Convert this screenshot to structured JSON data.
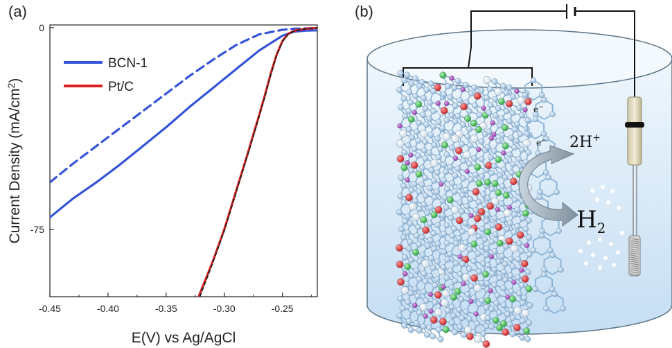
{
  "panels": {
    "a": {
      "label": "(a)"
    },
    "b": {
      "label": "(b)"
    }
  },
  "chart_data": {
    "type": "line",
    "title": "",
    "xlabel": "E(V) vs Ag/AgCl",
    "ylabel": "Current Density (mA/cm²)",
    "ylabel_parts": {
      "main": "Current Density (mA/cm",
      "sup": "2",
      "end": ")"
    },
    "xlim": [
      -0.45,
      -0.22
    ],
    "ylim": [
      -100,
      1
    ],
    "x_ticks": [
      -0.45,
      -0.4,
      -0.35,
      -0.3,
      -0.25
    ],
    "x_tick_labels": [
      "-0.45",
      "-0.40",
      "-0.35",
      "-0.30",
      "-0.25"
    ],
    "y_ticks": [
      0,
      -75
    ],
    "y_tick_labels": [
      "0",
      "-75"
    ],
    "legend_position": "top-left",
    "series": [
      {
        "name": "BCN-1",
        "color": "#3554d8",
        "style": "solid",
        "x": [
          -0.45,
          -0.43,
          -0.41,
          -0.39,
          -0.37,
          -0.35,
          -0.33,
          -0.31,
          -0.29,
          -0.27,
          -0.25,
          -0.24,
          -0.23,
          -0.22
        ],
        "y": [
          -70.5,
          -63.5,
          -57.5,
          -51,
          -44,
          -37,
          -29.5,
          -22.5,
          -15.5,
          -8.5,
          -3,
          -1.5,
          -1.1,
          -1
        ]
      },
      {
        "name": "",
        "color": "#3554d8",
        "style": "dashed",
        "x": [
          -0.45,
          -0.43,
          -0.41,
          -0.39,
          -0.37,
          -0.35,
          -0.33,
          -0.31,
          -0.29,
          -0.27,
          -0.25,
          -0.24,
          -0.23,
          -0.22
        ],
        "y": [
          -57.5,
          -50.5,
          -44,
          -37.5,
          -31,
          -24.5,
          -18,
          -12,
          -6.5,
          -2.5,
          -0.8,
          -0.4,
          -0.3,
          -0.2
        ]
      },
      {
        "name": "Pt/C",
        "color": "#e02121",
        "style": "solid",
        "x": [
          -0.322,
          -0.31,
          -0.3,
          -0.29,
          -0.28,
          -0.27,
          -0.265,
          -0.26,
          -0.255,
          -0.25,
          -0.245,
          -0.24,
          -0.23,
          -0.22
        ],
        "y": [
          -100,
          -87,
          -75,
          -61,
          -47,
          -32.5,
          -25,
          -17,
          -10,
          -5,
          -2.3,
          -1.2,
          -0.4,
          -0.1
        ]
      },
      {
        "name": "",
        "color": "#222222",
        "style": "dashed",
        "x": [
          -0.321,
          -0.31,
          -0.3,
          -0.29,
          -0.28,
          -0.27,
          -0.265,
          -0.26,
          -0.255,
          -0.25,
          -0.245,
          -0.24,
          -0.23,
          -0.22
        ],
        "y": [
          -100,
          -87.5,
          -75.5,
          -61.5,
          -47.5,
          -33,
          -25.5,
          -17.5,
          -10.3,
          -5.2,
          -2.4,
          -1.3,
          -0.45,
          -0.12
        ]
      }
    ]
  },
  "schematic": {
    "electron_label": "e",
    "electron_sup": "−",
    "proton_label": "2H",
    "proton_sup": "+",
    "hydrogen_label": "H",
    "hydrogen_sub": "2"
  }
}
